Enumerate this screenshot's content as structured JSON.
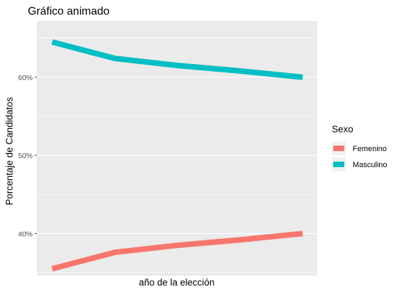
{
  "chart_data": {
    "type": "line",
    "title": "Gráfico animado",
    "xlabel": "año de la elección",
    "ylabel": "Porcentaje de Candidatos",
    "ylim": [
      34.6,
      67.2
    ],
    "y_ticks": [
      40,
      50,
      60
    ],
    "y_tick_labels": [
      "40%",
      "50%",
      "60%"
    ],
    "y_unit": "%",
    "grid": true,
    "legend": {
      "title": "Sexo",
      "placement": "right"
    },
    "series": [
      {
        "name": "Femenino",
        "color": "#F8766D",
        "values": [
          35.5,
          37.6,
          38.5,
          39.2,
          40.0
        ]
      },
      {
        "name": "Masculino",
        "color": "#00BFC4",
        "values": [
          64.5,
          62.4,
          61.5,
          60.8,
          60.0
        ]
      }
    ]
  }
}
